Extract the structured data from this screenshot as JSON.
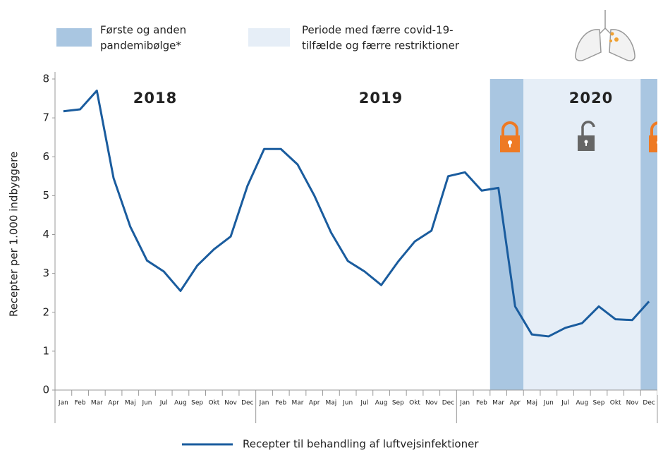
{
  "chart_data": {
    "type": "line",
    "y_label": "Recepter per 1.000 indbyggere",
    "categories": [
      "Jan",
      "Feb",
      "Mar",
      "Apr",
      "Maj",
      "Jun",
      "Jul",
      "Aug",
      "Sep",
      "Okt",
      "Nov",
      "Dec",
      "Jan",
      "Feb",
      "Mar",
      "Apr",
      "Maj",
      "Jun",
      "Jul",
      "Aug",
      "Sep",
      "Okt",
      "Nov",
      "Dec",
      "Jan",
      "Feb",
      "Mar",
      "Apr",
      "Maj",
      "Jun",
      "Jul",
      "Aug",
      "Sep",
      "Okt",
      "Nov",
      "Dec"
    ],
    "years": [
      "2018",
      "2019",
      "2020"
    ],
    "series": [
      {
        "name": "Recepter til behandling af luftvejsinfektioner",
        "color": "#1a5c9e",
        "values": [
          7.17,
          7.22,
          7.7,
          5.45,
          4.2,
          3.33,
          3.05,
          2.55,
          3.2,
          3.62,
          3.95,
          5.25,
          6.2,
          6.2,
          5.8,
          5.0,
          4.05,
          3.32,
          3.05,
          2.7,
          3.3,
          3.82,
          4.1,
          5.5,
          5.6,
          5.13,
          5.2,
          2.15,
          1.43,
          1.38,
          1.6,
          1.72,
          2.15,
          1.82,
          1.8,
          2.28
        ]
      }
    ],
    "periods": [
      {
        "label": [
          "Første og anden",
          "pandemibølge*"
        ],
        "color": "#a9c6e1",
        "from": 26,
        "to": 27
      },
      {
        "label": [
          "Periode med færre covid-19-",
          "tilfælde og færre restriktioner"
        ],
        "color": "#e6eef7",
        "from": 28,
        "to": 34
      },
      {
        "label": [
          "Første og anden",
          "pandemibølge*"
        ],
        "color": "#a9c6e1",
        "from": 35,
        "to": 35
      }
    ],
    "ylim": [
      0,
      8
    ],
    "yticks": [
      0,
      1,
      2,
      3,
      4,
      5,
      6,
      7,
      8
    ],
    "grid": false
  }
}
